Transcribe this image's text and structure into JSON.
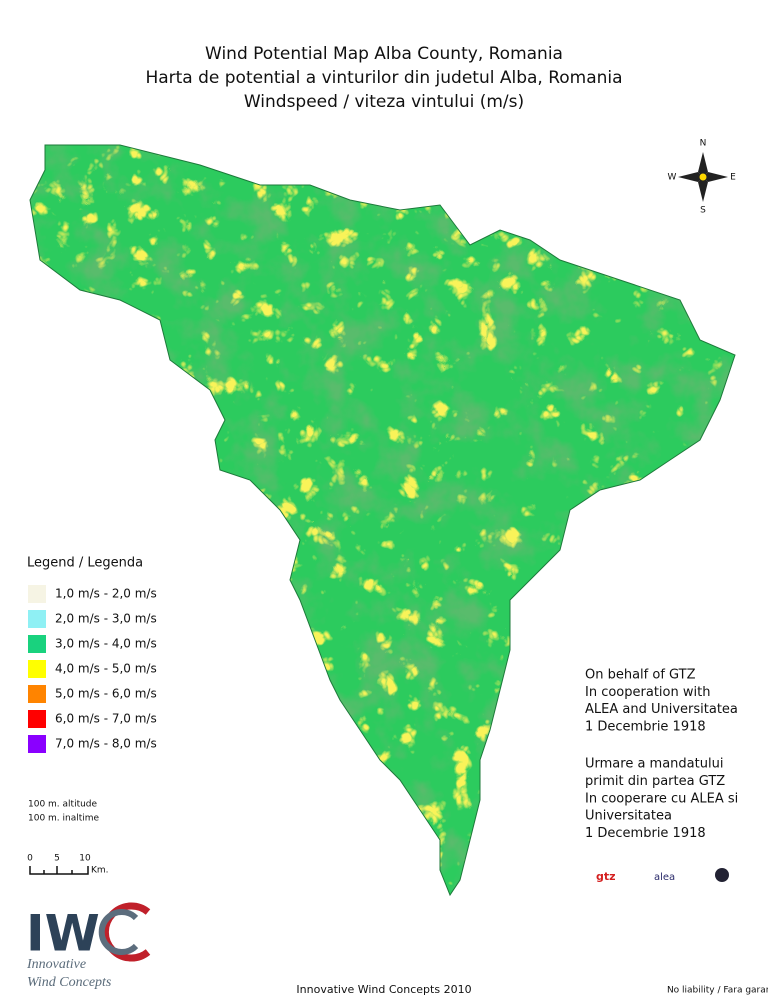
{
  "title": [
    "Wind Potential Map Alba County, Romania",
    "Harta de potential a vinturilor din judetul Alba, Romania",
    "Windspeed / viteza vintului  (m/s)"
  ],
  "compass": {
    "north": "N",
    "east": "E",
    "south": "S",
    "west": "W"
  },
  "legend": {
    "title": "Legend / Legenda",
    "items": [
      {
        "label": "1,0 m/s - 2,0 m/s",
        "color": "#f6f4e4"
      },
      {
        "label": "2,0 m/s - 3,0 m/s",
        "color": "#8ff0f4"
      },
      {
        "label": "3,0 m/s - 4,0 m/s",
        "color": "#19d27e"
      },
      {
        "label": "4,0 m/s - 5,0 m/s",
        "color": "#ffff00"
      },
      {
        "label": "5,0 m/s - 6,0 m/s",
        "color": "#ff8400"
      },
      {
        "label": "6,0 m/s - 7,0 m/s",
        "color": "#ff0000"
      },
      {
        "label": "7,0 m/s - 8,0 m/s",
        "color": "#8a00ff"
      }
    ]
  },
  "altitude": [
    "100 m. altitude",
    "100 m. inaltime"
  ],
  "scale": {
    "ticks": [
      "0",
      "5",
      "10"
    ],
    "unit": "Km."
  },
  "credits": [
    [
      "On behalf of GTZ",
      "In cooperation with",
      "ALEA and Universitatea",
      "1 Decembrie 1918"
    ],
    [
      "Urmare a mandatului",
      "primit din partea GTZ",
      "In cooperare cu ALEA si",
      "Universitatea",
      "1 Decembrie 1918"
    ]
  ],
  "partners": [
    "gtz",
    "alea"
  ],
  "brand": {
    "name": "IW",
    "tagline": [
      "Innovative",
      "Wind Concepts"
    ]
  },
  "footer": "Innovative Wind Concepts 2010",
  "disclaimer": "No liability / Fara garantie"
}
